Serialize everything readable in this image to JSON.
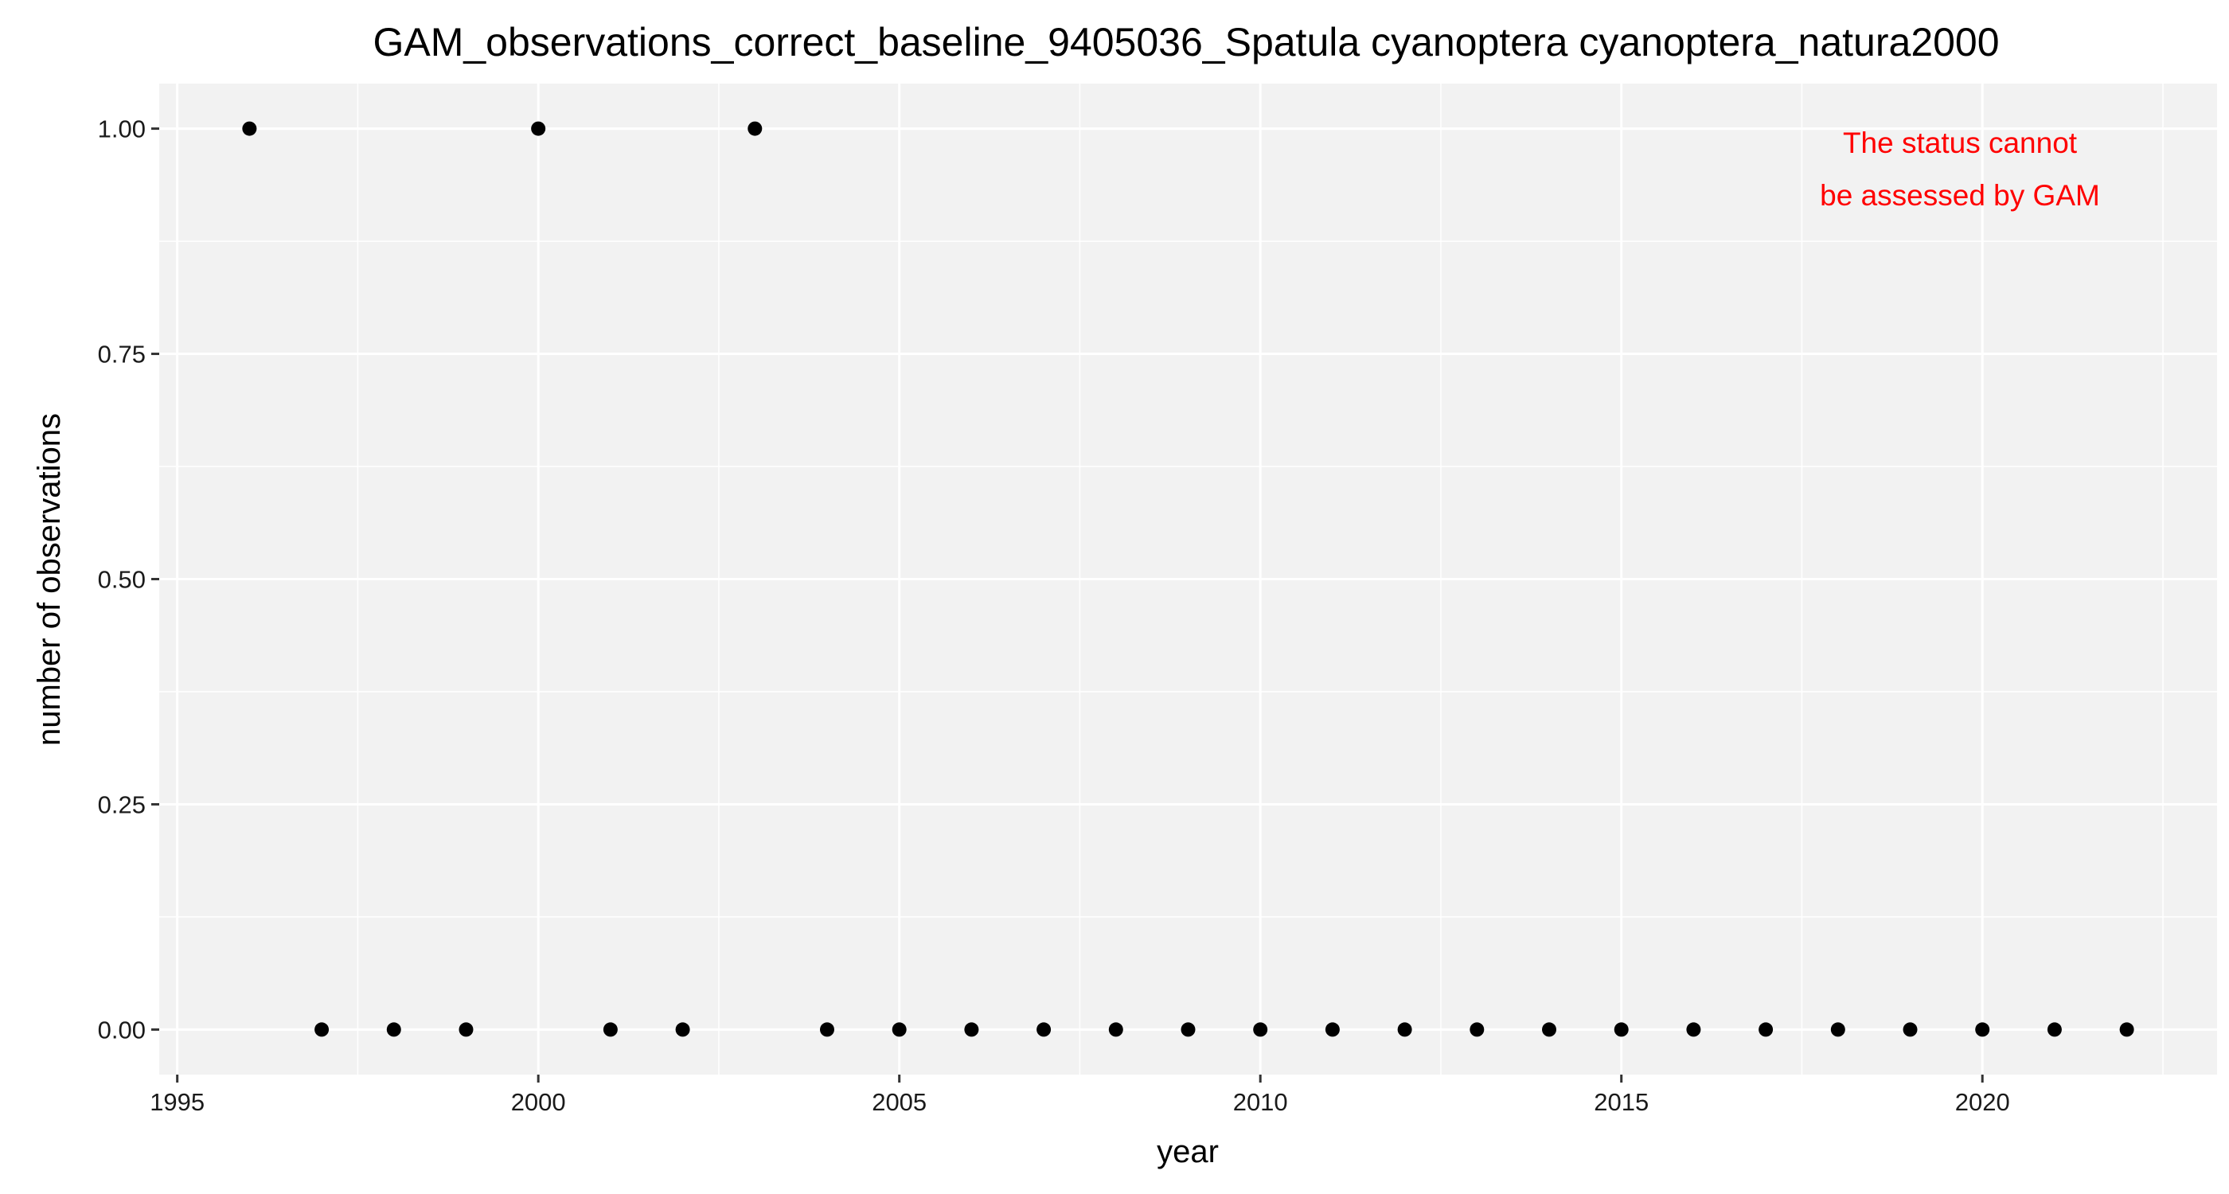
{
  "chart_data": {
    "type": "scatter",
    "title": "GAM_observations_correct_baseline_9405036_Spatula cyanoptera cyanoptera_natura2000",
    "xlabel": "year",
    "ylabel": "number of observations",
    "xlim": [
      1994.75,
      2023.25
    ],
    "ylim": [
      -0.05,
      1.05
    ],
    "x_ticks": [
      1995,
      2000,
      2005,
      2010,
      2015,
      2020
    ],
    "x_tick_labels": [
      "1995",
      "2000",
      "2005",
      "2010",
      "2015",
      "2020"
    ],
    "y_ticks": [
      0,
      0.25,
      0.5,
      0.75,
      1.0
    ],
    "y_tick_labels": [
      "0.00",
      "0.25",
      "0.50",
      "0.75",
      "1.00"
    ],
    "grid": true,
    "background_color": "#f2f2f2",
    "grid_color": "#ffffff",
    "point_color": "#000000",
    "annotation": {
      "lines": [
        "The status cannot",
        "be assessed by GAM"
      ],
      "color": "#ff0000",
      "placement": "top-right"
    },
    "series": [
      {
        "x": [
          1996,
          1997,
          1998,
          1999,
          2000,
          2001,
          2002,
          2003,
          2004,
          2005,
          2006,
          2007,
          2008,
          2009,
          2010,
          2011,
          2012,
          2013,
          2014,
          2015,
          2016,
          2017,
          2018,
          2019,
          2020,
          2021,
          2022
        ],
        "y": [
          1,
          0,
          0,
          0,
          1,
          0,
          0,
          1,
          0,
          0,
          0,
          0,
          0,
          0,
          0,
          0,
          0,
          0,
          0,
          0,
          0,
          0,
          0,
          0,
          0,
          0,
          0
        ]
      }
    ]
  }
}
